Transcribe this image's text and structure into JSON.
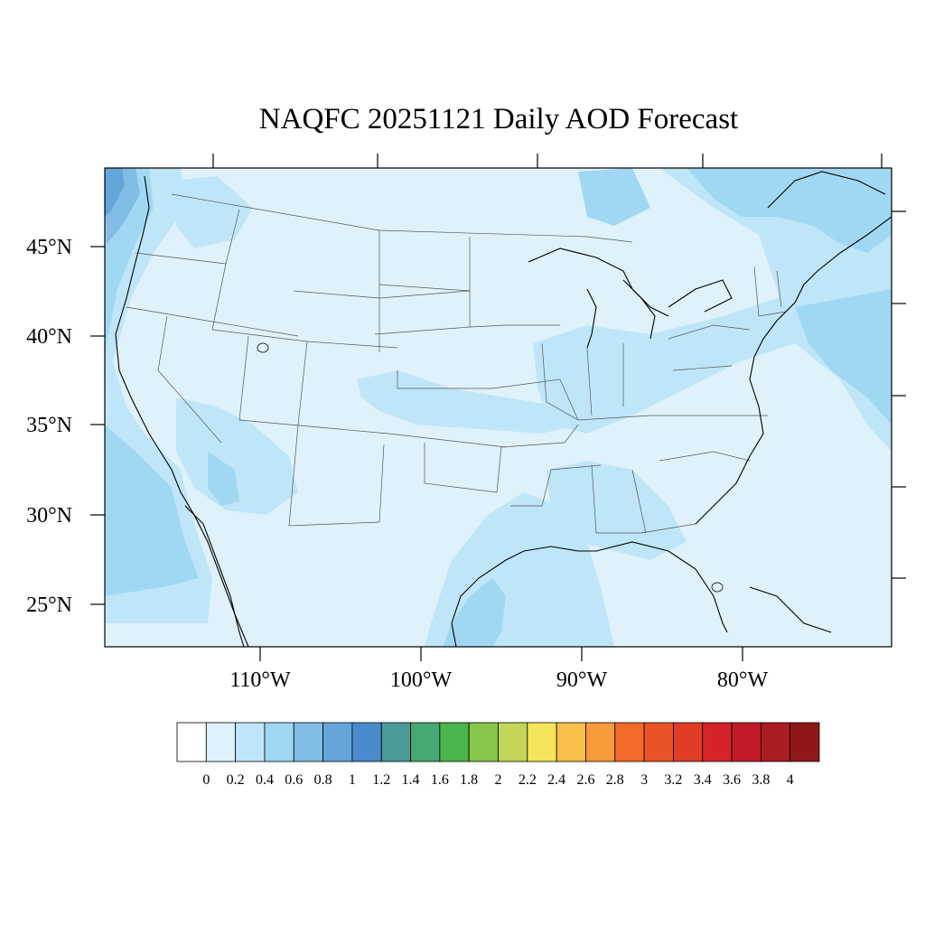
{
  "title": "NAQFC 20251121 Daily AOD Forecast",
  "lat_labels": [
    "45°N",
    "40°N",
    "35°N",
    "30°N",
    "25°N"
  ],
  "lon_labels": [
    "110°W",
    "100°W",
    "90°W",
    "80°W"
  ],
  "colorbar": {
    "labels": [
      "0",
      "0.2",
      "0.4",
      "0.6",
      "0.8",
      "1",
      "1.2",
      "1.4",
      "1.6",
      "1.8",
      "2",
      "2.2",
      "2.4",
      "2.6",
      "2.8",
      "3",
      "3.2",
      "3.4",
      "3.6",
      "3.8",
      "4"
    ],
    "colors": [
      "#ffffff",
      "#dff2fb",
      "#bfe6f8",
      "#a0d8f4",
      "#82bde6",
      "#64a6da",
      "#4a8bcb",
      "#4a9a9a",
      "#48a872",
      "#4bb44a",
      "#86c64b",
      "#c3d65a",
      "#f6e55a",
      "#f8c04a",
      "#f79a3c",
      "#f36a2b",
      "#ea5228",
      "#e03c26",
      "#d52329",
      "#c21b27",
      "#aa1b22",
      "#8f1719"
    ]
  },
  "map_colors": {
    "base": "#dff2fb",
    "light": "#bfe6f8",
    "mid": "#a0d8f4",
    "high": "#82bde6",
    "peak": "#64a6da"
  }
}
